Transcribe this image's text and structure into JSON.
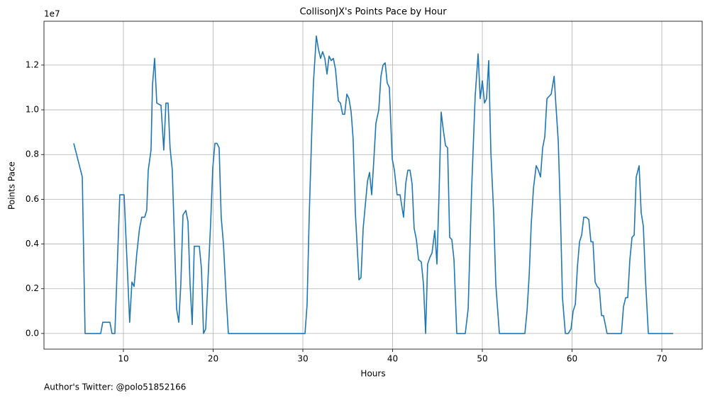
{
  "chart_data": {
    "type": "line",
    "title": "CollisonJX's Points Pace by Hour",
    "x_label": "Hours",
    "y_label": "Points Pace",
    "y_offset_label": "1e7",
    "footer": "Author's Twitter: @polo51852166",
    "x": [
      4.47,
      5.42,
      5.73,
      7.47,
      7.7,
      8.5,
      8.73,
      9.05,
      9.6,
      10.08,
      10.7,
      10.95,
      11.19,
      11.5,
      11.8,
      12.05,
      12.37,
      12.6,
      12.77,
      13.08,
      13.24,
      13.48,
      13.72,
      14.19,
      14.5,
      14.74,
      14.98,
      15.2,
      15.45,
      15.93,
      16.17,
      16.4,
      16.64,
      16.96,
      17.2,
      17.43,
      17.67,
      17.9,
      18.46,
      18.7,
      18.93,
      19.17,
      19.72,
      19.96,
      20.2,
      20.43,
      20.67,
      20.9,
      21.15,
      21.46,
      21.7,
      30.24,
      30.47,
      30.71,
      31.03,
      31.19,
      31.5,
      31.74,
      31.98,
      32.2,
      32.45,
      32.69,
      32.92,
      33.16,
      33.4,
      33.64,
      33.95,
      34.19,
      34.43,
      34.66,
      34.9,
      35.14,
      35.38,
      35.6,
      35.85,
      36.25,
      36.48,
      36.72,
      37.2,
      37.43,
      37.67,
      37.9,
      38.14,
      38.46,
      38.7,
      38.93,
      39.17,
      39.4,
      39.64,
      39.96,
      40.2,
      40.5,
      40.83,
      41.22,
      41.46,
      41.7,
      41.94,
      42.17,
      42.4,
      42.65,
      42.89,
      43.2,
      43.44,
      43.68,
      43.9,
      44.15,
      44.39,
      44.7,
      44.94,
      45.18,
      45.41,
      45.65,
      45.9,
      46.13,
      46.36,
      46.6,
      46.84,
      47.15,
      48.1,
      48.42,
      48.81,
      49.2,
      49.53,
      49.76,
      50.0,
      50.24,
      50.47,
      50.71,
      50.95,
      51.26,
      51.5,
      51.9,
      54.74,
      54.98,
      55.22,
      55.45,
      55.7,
      56.0,
      56.24,
      56.48,
      56.72,
      56.96,
      57.2,
      57.43,
      57.67,
      58.0,
      58.2,
      58.46,
      58.7,
      58.93,
      59.25,
      59.57,
      59.88,
      60.12,
      60.36,
      60.6,
      60.83,
      61.07,
      61.3,
      61.55,
      61.86,
      62.1,
      62.33,
      62.57,
      62.8,
      63.04,
      63.28,
      63.5,
      63.9,
      65.5,
      65.73,
      65.97,
      66.2,
      66.44,
      66.68,
      66.92,
      67.15,
      67.47,
      67.7,
      67.94,
      68.18,
      68.5,
      71.27
    ],
    "series": [
      {
        "name": "Points Pace",
        "color": "#1f77b4",
        "values": [
          0.85,
          0.7,
          0,
          0,
          0.05,
          0.05,
          0,
          0,
          0.62,
          0.62,
          0.05,
          0.23,
          0.21,
          0.36,
          0.47,
          0.52,
          0.52,
          0.55,
          0.73,
          0.82,
          1.11,
          1.23,
          1.03,
          1.02,
          0.82,
          1.03,
          1.03,
          0.83,
          0.73,
          0.11,
          0.05,
          0.22,
          0.53,
          0.55,
          0.5,
          0.22,
          0.04,
          0.39,
          0.39,
          0.29,
          0,
          0.02,
          0.49,
          0.74,
          0.85,
          0.85,
          0.83,
          0.52,
          0.4,
          0.16,
          0,
          0,
          0.13,
          0.53,
          0.95,
          1.13,
          1.33,
          1.27,
          1.23,
          1.26,
          1.23,
          1.16,
          1.24,
          1.22,
          1.23,
          1.18,
          1.04,
          1.03,
          0.98,
          0.98,
          1.07,
          1.05,
          0.99,
          0.87,
          0.54,
          0.24,
          0.25,
          0.47,
          0.68,
          0.72,
          0.62,
          0.77,
          0.94,
          1.0,
          1.15,
          1.2,
          1.21,
          1.12,
          1.1,
          0.78,
          0.73,
          0.62,
          0.62,
          0.52,
          0.67,
          0.73,
          0.73,
          0.67,
          0.47,
          0.42,
          0.33,
          0.32,
          0.22,
          0,
          0.31,
          0.34,
          0.36,
          0.46,
          0.31,
          0.63,
          0.99,
          0.91,
          0.84,
          0.83,
          0.43,
          0.42,
          0.33,
          0,
          0,
          0.11,
          0.65,
          1.06,
          1.25,
          1.05,
          1.13,
          1.03,
          1.05,
          1.22,
          0.81,
          0.54,
          0.22,
          0,
          0,
          0.1,
          0.26,
          0.49,
          0.65,
          0.75,
          0.73,
          0.7,
          0.83,
          0.88,
          1.05,
          1.06,
          1.07,
          1.15,
          1.02,
          0.86,
          0.54,
          0.16,
          0,
          0,
          0.02,
          0.1,
          0.13,
          0.3,
          0.41,
          0.44,
          0.52,
          0.52,
          0.51,
          0.41,
          0.41,
          0.23,
          0.21,
          0.2,
          0.08,
          0.08,
          0,
          0,
          0.12,
          0.16,
          0.16,
          0.33,
          0.43,
          0.44,
          0.7,
          0.75,
          0.54,
          0.48,
          0.24,
          0,
          0
        ]
      }
    ],
    "xlim": [
      1.15,
      74.5
    ],
    "ylim": [
      -0.07,
      1.396
    ],
    "xticks": [
      10,
      20,
      30,
      40,
      50,
      60,
      70
    ],
    "yticks": [
      {
        "value": 0,
        "label": "0.0"
      },
      0.2,
      0.4,
      0.6,
      0.8,
      {
        "value": 1.0,
        "label": "1.0"
      },
      1.2
    ],
    "grid": true
  }
}
